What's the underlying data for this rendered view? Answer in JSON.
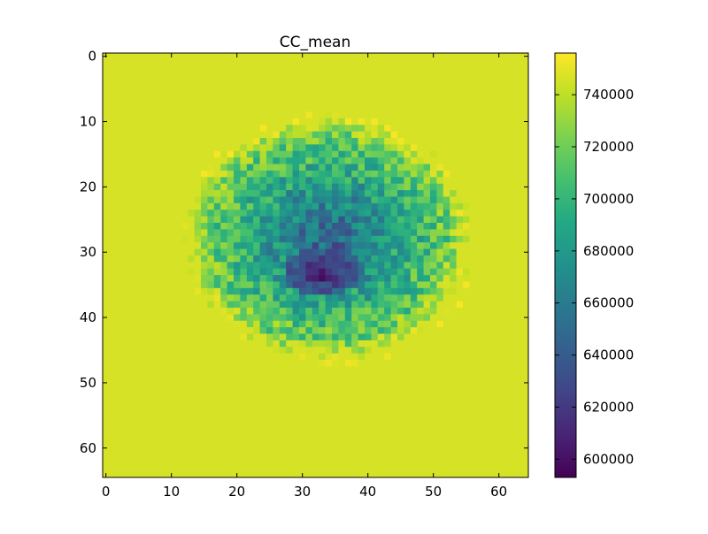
{
  "chart_data": {
    "type": "heatmap",
    "title": "CC_mean",
    "xlabel": "",
    "ylabel": "",
    "grid": false,
    "colormap": "viridis",
    "rows": 65,
    "cols": 65,
    "xlim": [
      -0.5,
      64.5
    ],
    "ylim": [
      64.5,
      -0.5
    ],
    "x_ticks": [
      0,
      10,
      20,
      30,
      40,
      50,
      60
    ],
    "x_tick_labels": [
      "0",
      "10",
      "20",
      "30",
      "40",
      "50",
      "60"
    ],
    "y_ticks": [
      0,
      10,
      20,
      30,
      40,
      50,
      60
    ],
    "y_tick_labels": [
      "0",
      "10",
      "20",
      "30",
      "40",
      "50",
      "60"
    ],
    "background_value": 746000,
    "colorbar": {
      "min": 593000,
      "max": 756000,
      "ticks": [
        600000,
        620000,
        640000,
        660000,
        680000,
        700000,
        720000,
        740000
      ],
      "tick_labels": [
        "600000",
        "620000",
        "640000",
        "660000",
        "680000",
        "700000",
        "720000",
        "740000"
      ],
      "placement": "right"
    },
    "blob_regions": [
      {
        "center_col": 34,
        "center_row": 28,
        "radius_col": 21,
        "radius_row": 18,
        "center_value": 640000,
        "edge_value": 730000
      },
      {
        "center_col": 33,
        "center_row": 33,
        "radius_col": 6,
        "radius_row": 4,
        "center_value": 600000,
        "edge_value": 650000
      }
    ],
    "x_orientation": "left-to-right",
    "y_orientation": "top-to-bottom"
  }
}
